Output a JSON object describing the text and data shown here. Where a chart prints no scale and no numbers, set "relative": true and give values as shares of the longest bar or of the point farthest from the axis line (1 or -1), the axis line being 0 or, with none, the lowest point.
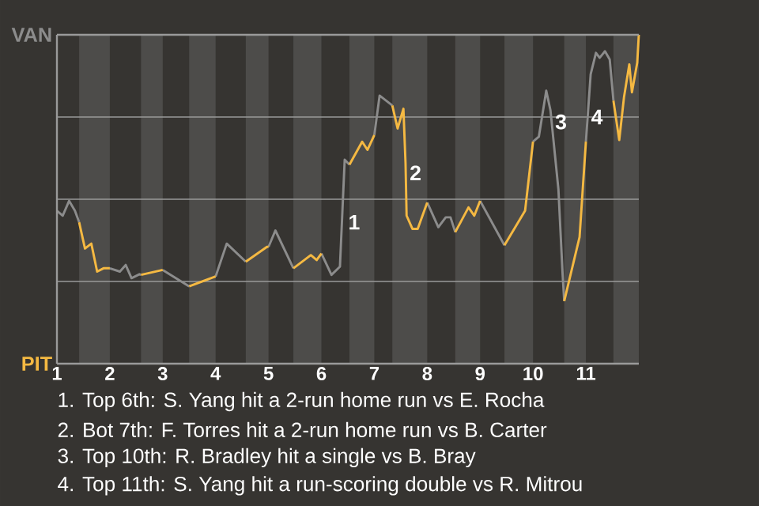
{
  "chart_data": {
    "type": "line",
    "relative": true,
    "xlim": [
      1,
      12
    ],
    "xticks": [
      1,
      2,
      3,
      4,
      5,
      6,
      7,
      8,
      9,
      10,
      11
    ],
    "ref_lines": [
      {
        "axis": "y",
        "value": 0.25,
        "color": "#9a9a9a"
      },
      {
        "axis": "y",
        "value": 0.5,
        "color": "#9a9a9a"
      },
      {
        "axis": "y",
        "value": 0.75,
        "color": "#9a9a9a"
      }
    ],
    "bands": [
      {
        "axis": "x",
        "from": 1.42,
        "to": 2,
        "color": "#4d4c4a"
      },
      {
        "axis": "x",
        "from": 2.59,
        "to": 3,
        "color": "#4d4c4a"
      },
      {
        "axis": "x",
        "from": 3.5,
        "to": 4,
        "color": "#4d4c4a"
      },
      {
        "axis": "x",
        "from": 4.57,
        "to": 5,
        "color": "#4d4c4a"
      },
      {
        "axis": "x",
        "from": 5.47,
        "to": 6,
        "color": "#4d4c4a"
      },
      {
        "axis": "x",
        "from": 6.53,
        "to": 7,
        "color": "#4d4c4a"
      },
      {
        "axis": "x",
        "from": 7.34,
        "to": 8,
        "color": "#4d4c4a"
      },
      {
        "axis": "x",
        "from": 8.53,
        "to": 9,
        "color": "#4d4c4a"
      },
      {
        "axis": "x",
        "from": 9.46,
        "to": 10,
        "color": "#4d4c4a"
      },
      {
        "axis": "x",
        "from": 10.59,
        "to": 11,
        "color": "#4d4c4a"
      },
      {
        "axis": "x",
        "from": 11.52,
        "to": 12,
        "color": "#4d4c4a"
      }
    ],
    "series": [
      {
        "color": "#8c8c8c",
        "x": [
          1,
          1.11,
          1.23,
          1.34,
          1.42,
          null,
          2,
          2.19,
          2.3,
          2.41,
          2.56,
          2.59,
          null,
          3,
          3.5,
          null,
          4,
          4.21,
          4.57,
          null,
          5,
          5.13,
          5.47,
          null,
          6,
          6.19,
          6.35,
          6.44,
          6.53,
          null,
          7,
          7.1,
          7.34,
          null,
          8,
          8.21,
          8.35,
          8.44,
          8.53,
          null,
          9,
          9.46,
          null,
          10,
          10.11,
          10.25,
          10.33,
          10.48,
          10.56,
          10.59,
          null,
          11,
          11.09,
          11.19,
          11.26,
          11.36,
          11.45,
          11.52
        ],
        "values": [
          0.465,
          0.45,
          0.495,
          0.465,
          0.43,
          null,
          0.29,
          0.28,
          0.3,
          0.26,
          0.272,
          0.27,
          null,
          0.285,
          0.235,
          null,
          0.265,
          0.365,
          0.31,
          null,
          0.355,
          0.405,
          0.29,
          null,
          0.335,
          0.27,
          0.295,
          0.62,
          0.605,
          null,
          0.695,
          0.815,
          0.785,
          null,
          0.49,
          0.415,
          0.445,
          0.445,
          0.4,
          null,
          0.495,
          0.36,
          null,
          0.675,
          0.69,
          0.83,
          0.77,
          0.53,
          0.27,
          0.19,
          null,
          0.675,
          0.88,
          0.945,
          0.93,
          0.95,
          0.925,
          0.8
        ]
      },
      {
        "color": "#f5b942",
        "x": [
          1.42,
          1.53,
          1.65,
          1.76,
          1.88,
          2,
          null,
          2.59,
          3,
          null,
          3.5,
          3.91,
          4,
          null,
          4.57,
          4.97,
          5,
          null,
          5.47,
          5.8,
          5.91,
          6,
          null,
          6.53,
          6.77,
          6.87,
          7,
          null,
          7.34,
          7.44,
          7.55,
          7.59,
          7.61,
          7.72,
          7.82,
          8,
          null,
          8.53,
          8.78,
          8.89,
          9,
          null,
          9.46,
          9.85,
          10,
          null,
          10.59,
          10.88,
          11,
          null,
          11.52,
          11.63,
          11.72,
          11.82,
          11.87,
          11.97,
          12
        ],
        "values": [
          0.43,
          0.35,
          0.365,
          0.28,
          0.29,
          0.29,
          null,
          0.27,
          0.285,
          null,
          0.235,
          0.26,
          0.265,
          null,
          0.31,
          0.355,
          0.355,
          null,
          0.29,
          0.33,
          0.315,
          0.335,
          null,
          0.605,
          0.675,
          0.65,
          0.695,
          null,
          0.785,
          0.715,
          0.775,
          0.61,
          0.45,
          0.41,
          0.41,
          0.49,
          null,
          0.4,
          0.475,
          0.45,
          0.495,
          null,
          0.36,
          0.465,
          0.675,
          null,
          0.19,
          0.385,
          0.675,
          null,
          0.8,
          0.68,
          0.81,
          0.91,
          0.825,
          0.915,
          1
        ]
      }
    ],
    "annotations": [
      "VAN",
      "PIT",
      {
        "text": "1",
        "x": 6.44,
        "y": 0.43
      },
      {
        "text": "2",
        "x": 7.6,
        "y": 0.58
      },
      {
        "text": "3",
        "x": 10.35,
        "y": 0.735
      },
      {
        "text": "4",
        "x": 11.03,
        "y": 0.75
      },
      "1. Top 6th: S. Yang hit a 2-run home run vs E. Rocha",
      "2. Bot 7th: F. Torres hit a 2-run home run vs B. Carter",
      "3. Top 10th: R. Bradley hit a single vs B. Bray",
      "4. Top 11th: S. Yang hit a run-scoring double vs R. Mitrou"
    ]
  }
}
